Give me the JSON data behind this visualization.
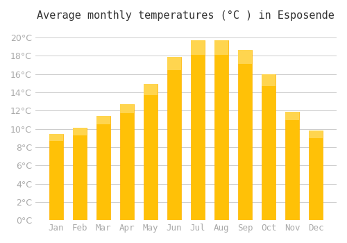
{
  "title": "Average monthly temperatures (°C ) in Esposende",
  "months": [
    "Jan",
    "Feb",
    "Mar",
    "Apr",
    "May",
    "Jun",
    "Jul",
    "Aug",
    "Sep",
    "Oct",
    "Nov",
    "Dec"
  ],
  "values": [
    9.4,
    10.1,
    11.4,
    12.7,
    14.9,
    17.9,
    19.7,
    19.7,
    18.6,
    16.0,
    11.9,
    9.8
  ],
  "bar_color_face": "#FFC107",
  "bar_color_edge": "#FFB300",
  "bar_gradient_top": "#FFD54F",
  "background_color": "#FFFFFF",
  "grid_color": "#CCCCCC",
  "ylim": [
    0,
    21
  ],
  "ytick_interval": 2,
  "title_fontsize": 11,
  "tick_fontsize": 9,
  "tick_color": "#AAAAAA",
  "font_family": "monospace"
}
